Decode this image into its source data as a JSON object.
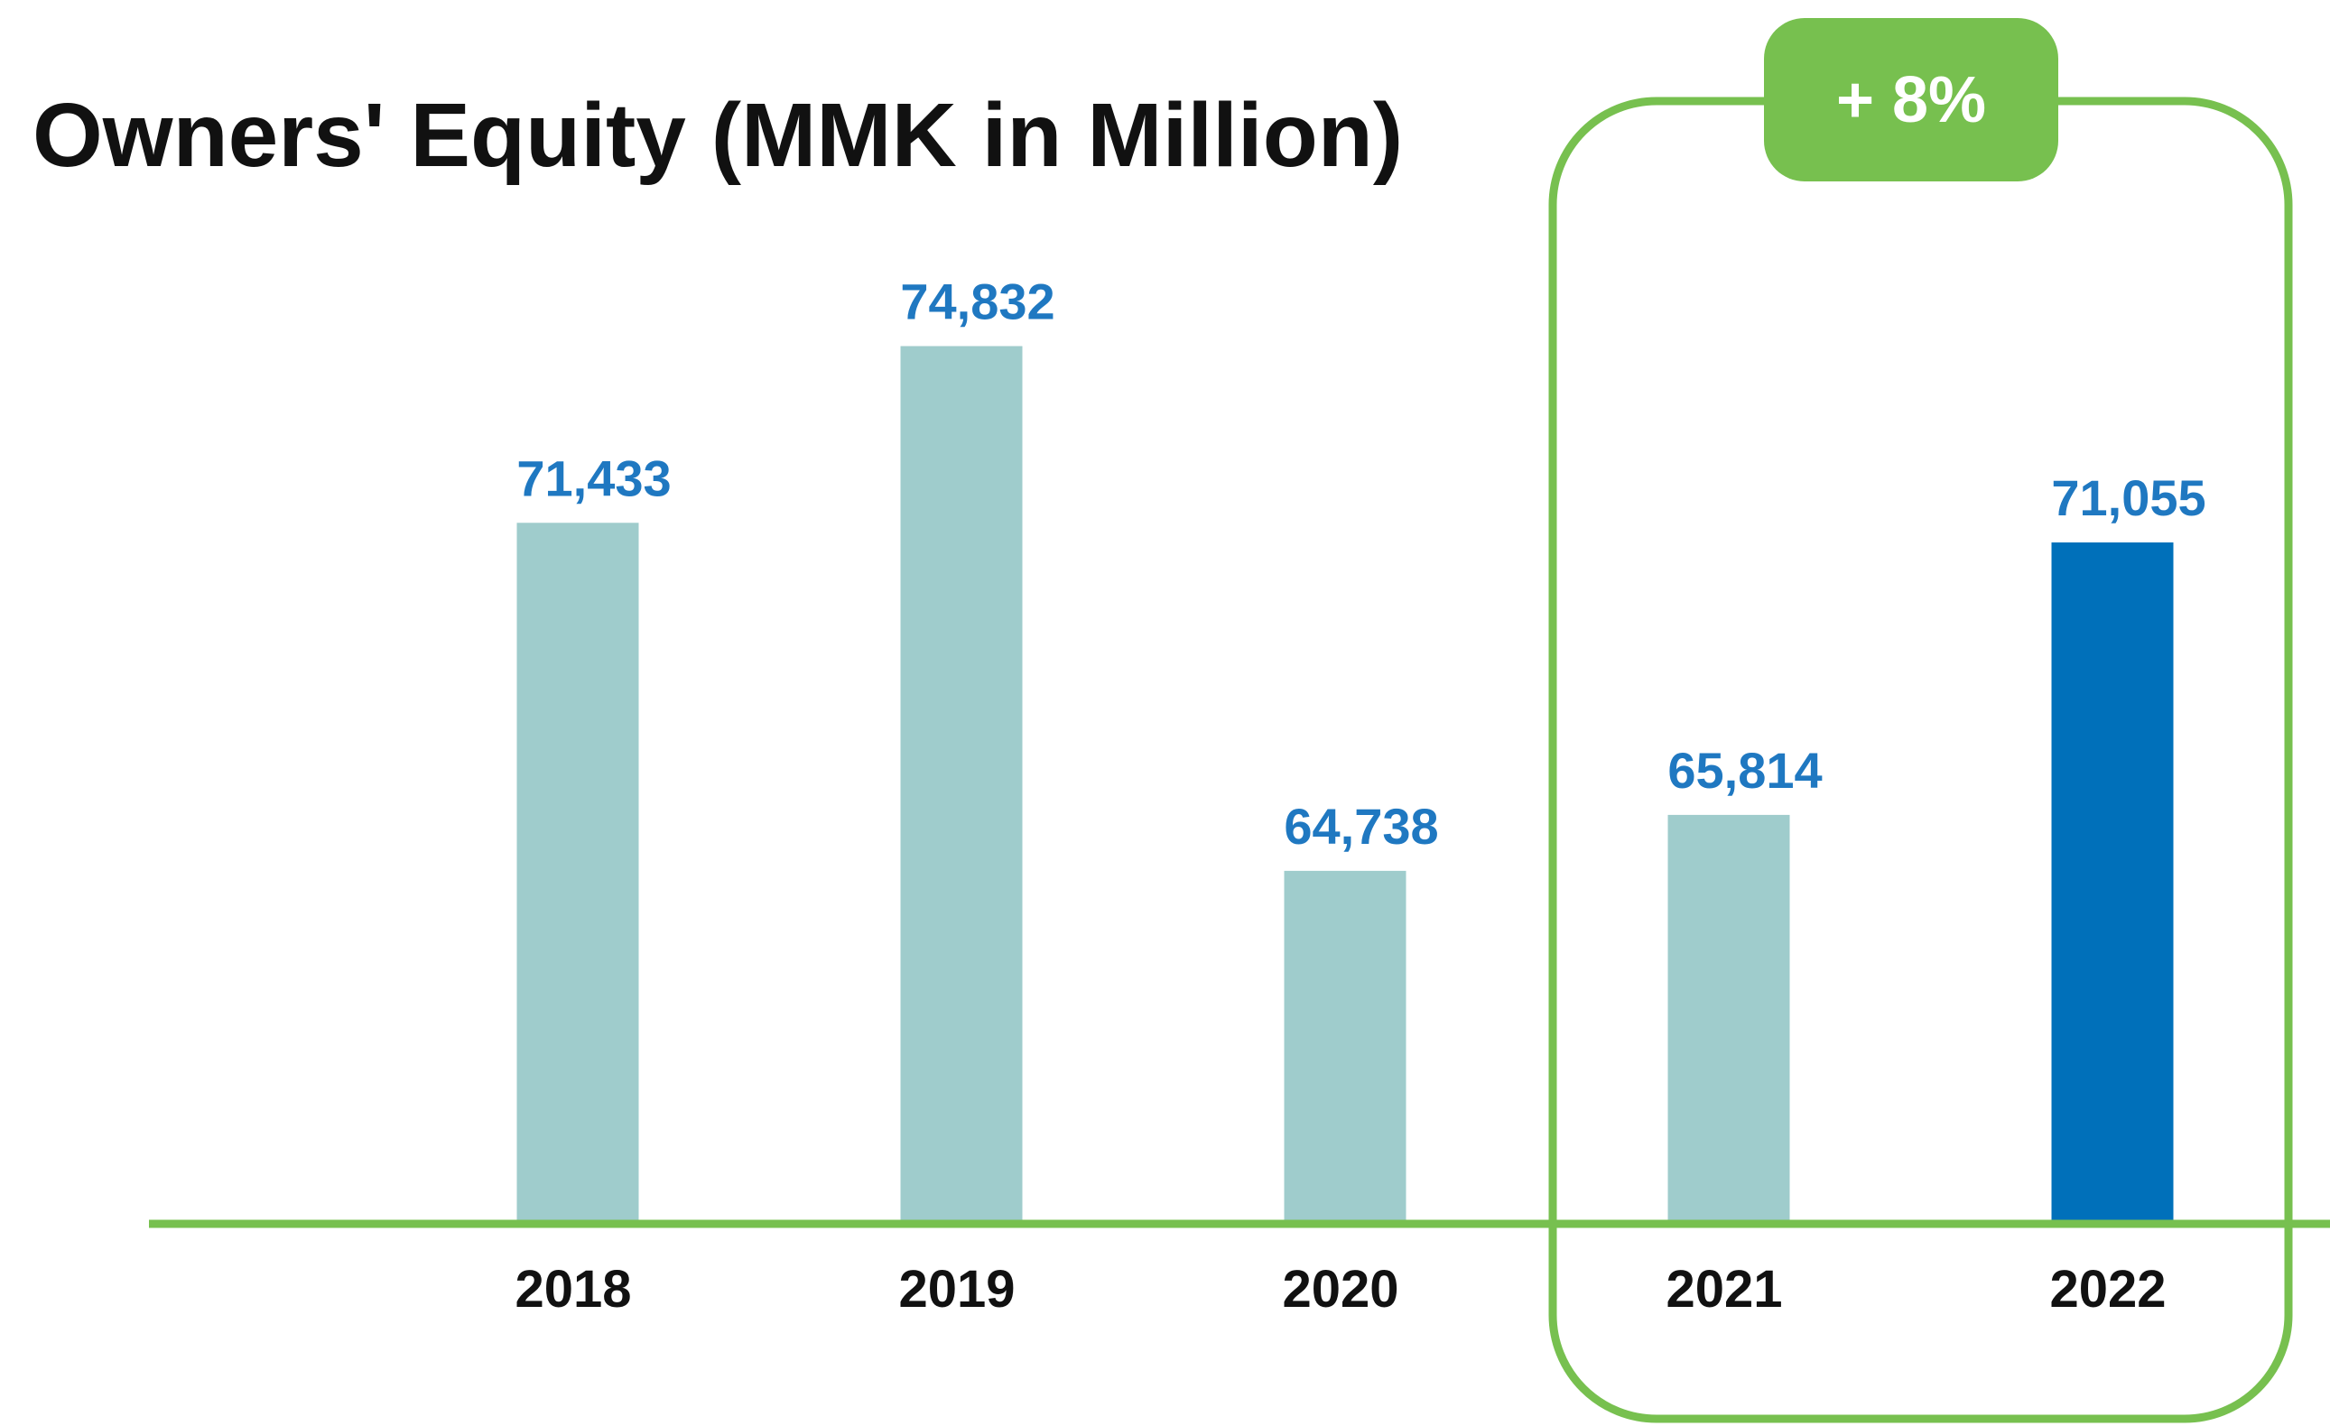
{
  "chart_data": {
    "type": "bar",
    "title": "Owners' Equity (MMK in Million)",
    "annotation": "+ 8%",
    "categories": [
      "2018",
      "2019",
      "2020",
      "2021",
      "2022"
    ],
    "values": [
      71433,
      74832,
      64738,
      65814,
      71055
    ],
    "value_labels": [
      "71,433",
      "74,832",
      "64,738",
      "65,814",
      "71,055"
    ],
    "colors": [
      "#9fcccc",
      "#9fcccc",
      "#9fcccc",
      "#9fcccc",
      "#0070ba"
    ],
    "ylim": [
      58000,
      78000
    ]
  }
}
